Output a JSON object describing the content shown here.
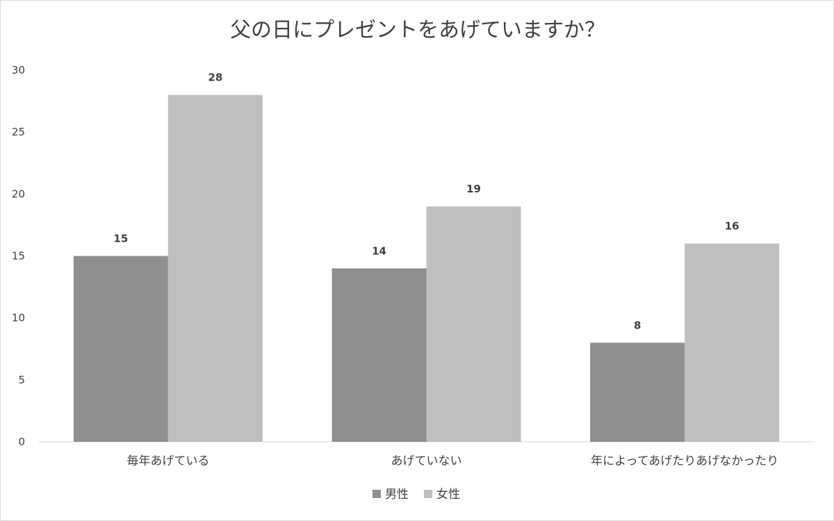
{
  "chart_data": {
    "type": "bar",
    "title": "父の日にプレゼントをあげていますか？",
    "categories": [
      "毎年あげている",
      "あげていない",
      "年によってあげたりあげなかったり"
    ],
    "series": [
      {
        "name": "男性",
        "values": [
          15,
          14,
          8
        ],
        "color": "#8f8f8f"
      },
      {
        "name": "女性",
        "values": [
          28,
          19,
          16
        ],
        "color": "#bfbfbf"
      }
    ],
    "xlabel": "",
    "ylabel": "",
    "ylim": [
      0,
      30
    ],
    "yticks": [
      0,
      5,
      10,
      15,
      20,
      25,
      30
    ],
    "grid": false,
    "legend": "bottom"
  }
}
